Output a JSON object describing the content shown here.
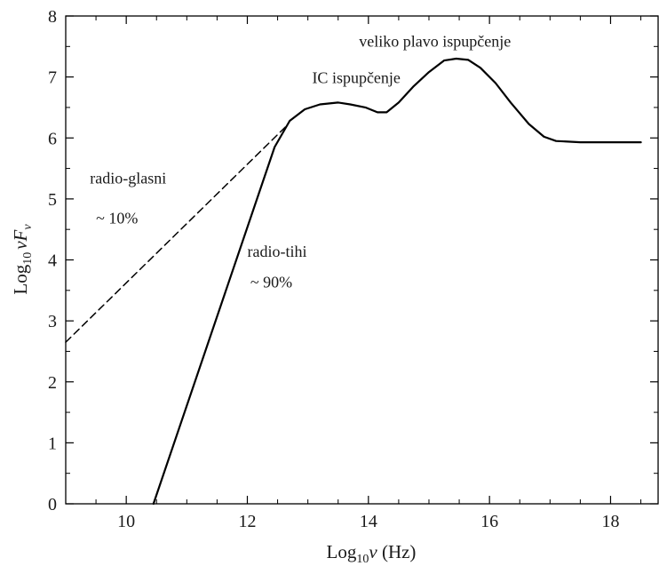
{
  "chart_data": {
    "type": "line",
    "xlabel_parts": {
      "log": "Log",
      "sub": "10",
      "nu": "ν",
      "unit": " (Hz)"
    },
    "ylabel_parts": {
      "log": "Log",
      "sub": "10",
      "nu": "ν",
      "F": "F",
      "nu_sub": "ν"
    },
    "xlim": [
      9,
      18.8
    ],
    "ylim": [
      0,
      8
    ],
    "x_ticks": [
      10,
      12,
      14,
      16,
      18
    ],
    "y_ticks": [
      0,
      1,
      2,
      3,
      4,
      5,
      6,
      7,
      8
    ],
    "grid": false,
    "series": [
      {
        "style": "solid",
        "color": "#000000",
        "points": [
          [
            10.45,
            0.0
          ],
          [
            12.45,
            5.85
          ],
          [
            12.7,
            6.28
          ],
          [
            12.95,
            6.47
          ],
          [
            13.2,
            6.55
          ],
          [
            13.5,
            6.58
          ],
          [
            13.7,
            6.55
          ],
          [
            13.95,
            6.5
          ],
          [
            14.15,
            6.42
          ],
          [
            14.3,
            6.42
          ],
          [
            14.5,
            6.58
          ],
          [
            14.75,
            6.85
          ],
          [
            15.0,
            7.08
          ],
          [
            15.25,
            7.27
          ],
          [
            15.45,
            7.3
          ],
          [
            15.65,
            7.28
          ],
          [
            15.85,
            7.15
          ],
          [
            16.1,
            6.9
          ],
          [
            16.35,
            6.58
          ],
          [
            16.65,
            6.23
          ],
          [
            16.9,
            6.02
          ],
          [
            17.1,
            5.95
          ],
          [
            17.5,
            5.93
          ],
          [
            18.0,
            5.93
          ],
          [
            18.5,
            5.93
          ]
        ]
      },
      {
        "style": "dashed",
        "color": "#000000",
        "points": [
          [
            9.0,
            2.65
          ],
          [
            12.65,
            6.2
          ]
        ]
      }
    ],
    "annotations": [
      {
        "text": "veliko plavo ispupčenje",
        "x": 15.1,
        "y": 7.5,
        "anchor": "middle"
      },
      {
        "text": "IC ispupčenje",
        "x": 13.8,
        "y": 6.9,
        "anchor": "middle"
      },
      {
        "text": "radio-glasni",
        "x": 9.4,
        "y": 5.25,
        "anchor": "start"
      },
      {
        "text": "~ 10%",
        "x": 9.5,
        "y": 4.6,
        "anchor": "start"
      },
      {
        "text": "radio-tihi",
        "x": 12.0,
        "y": 4.05,
        "anchor": "start"
      },
      {
        "text": "~ 90%",
        "x": 12.05,
        "y": 3.55,
        "anchor": "start"
      }
    ]
  }
}
